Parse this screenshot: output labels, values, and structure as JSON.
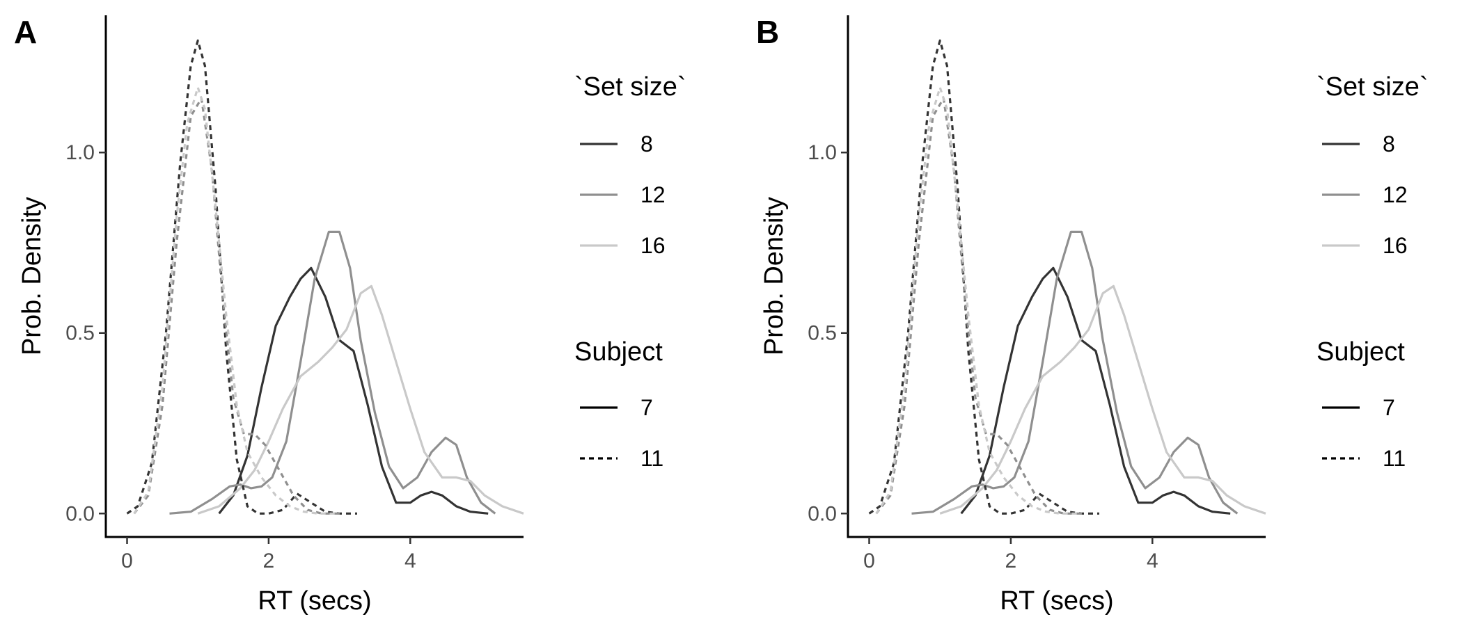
{
  "chart_data": [
    {
      "type": "line",
      "panel_label": "A",
      "xlabel": "RT (secs)",
      "ylabel": "Prob. Density",
      "xlim": [
        -0.3,
        5.6
      ],
      "ylim": [
        -0.065,
        1.38
      ],
      "xticks": [
        0,
        2,
        4
      ],
      "xtick_labels": [
        "0",
        "2",
        "4"
      ],
      "yticks": [
        0,
        0.5,
        1
      ],
      "ytick_labels": [
        "0.0",
        "0.5",
        "1.0"
      ],
      "grid": false,
      "legend_placement": "right",
      "legend_color": {
        "title": "`Set size`",
        "entries": [
          {
            "label": "8",
            "color": "#333333"
          },
          {
            "label": "12",
            "color": "#8f8f8f"
          },
          {
            "label": "16",
            "color": "#c9c9c9"
          }
        ]
      },
      "legend_linetype": {
        "title": "Subject",
        "entries": [
          {
            "label": "7",
            "dash": "solid"
          },
          {
            "label": "11",
            "dash": "dashed"
          }
        ]
      },
      "series": [
        {
          "set_size": "8",
          "subject": "7",
          "color": "#333333",
          "dash": "solid",
          "x": [
            1.3,
            1.5,
            1.7,
            1.9,
            2.1,
            2.3,
            2.45,
            2.6,
            2.8,
            3.0,
            3.2,
            3.4,
            3.6,
            3.8,
            4.0,
            4.15,
            4.3,
            4.45,
            4.65,
            4.85,
            5.1
          ],
          "y": [
            0.0,
            0.05,
            0.16,
            0.35,
            0.52,
            0.6,
            0.65,
            0.68,
            0.6,
            0.48,
            0.45,
            0.3,
            0.13,
            0.03,
            0.03,
            0.05,
            0.06,
            0.05,
            0.02,
            0.005,
            0.0
          ]
        },
        {
          "set_size": "12",
          "subject": "7",
          "color": "#8f8f8f",
          "dash": "solid",
          "x": [
            0.6,
            0.9,
            1.2,
            1.45,
            1.6,
            1.75,
            1.9,
            2.05,
            2.25,
            2.45,
            2.65,
            2.85,
            3.0,
            3.15,
            3.3,
            3.5,
            3.7,
            3.9,
            4.1,
            4.3,
            4.5,
            4.65,
            4.8,
            5.0,
            5.2
          ],
          "y": [
            0.0,
            0.005,
            0.04,
            0.075,
            0.08,
            0.07,
            0.075,
            0.1,
            0.2,
            0.42,
            0.65,
            0.78,
            0.78,
            0.68,
            0.48,
            0.28,
            0.13,
            0.07,
            0.1,
            0.17,
            0.21,
            0.19,
            0.1,
            0.03,
            0.0
          ]
        },
        {
          "set_size": "16",
          "subject": "7",
          "color": "#c9c9c9",
          "dash": "solid",
          "x": [
            1.0,
            1.3,
            1.6,
            1.8,
            2.0,
            2.2,
            2.45,
            2.7,
            2.9,
            3.1,
            3.3,
            3.45,
            3.6,
            3.8,
            4.0,
            4.2,
            4.45,
            4.65,
            4.85,
            5.05,
            5.3,
            5.6
          ],
          "y": [
            0.0,
            0.02,
            0.07,
            0.12,
            0.2,
            0.29,
            0.38,
            0.42,
            0.46,
            0.51,
            0.61,
            0.63,
            0.55,
            0.42,
            0.29,
            0.17,
            0.1,
            0.1,
            0.09,
            0.05,
            0.02,
            0.0
          ]
        },
        {
          "set_size": "8",
          "subject": "11",
          "color": "#333333",
          "dash": "dashed",
          "x": [
            0.0,
            0.15,
            0.35,
            0.55,
            0.75,
            0.9,
            1.0,
            1.1,
            1.25,
            1.4,
            1.55,
            1.7,
            1.85,
            2.0,
            2.2,
            2.4,
            2.6,
            2.8,
            3.0,
            3.25
          ],
          "y": [
            0.0,
            0.02,
            0.14,
            0.5,
            0.97,
            1.24,
            1.31,
            1.24,
            0.9,
            0.45,
            0.15,
            0.02,
            0.0,
            0.0,
            0.01,
            0.055,
            0.03,
            0.005,
            0.0,
            0.0
          ]
        },
        {
          "set_size": "12",
          "subject": "11",
          "color": "#8f8f8f",
          "dash": "dashed",
          "x": [
            0.1,
            0.3,
            0.5,
            0.7,
            0.9,
            1.05,
            1.2,
            1.35,
            1.5,
            1.65,
            1.8,
            1.95,
            2.15,
            2.35,
            2.55,
            2.75,
            3.0
          ],
          "y": [
            0.0,
            0.05,
            0.3,
            0.75,
            1.1,
            1.15,
            0.95,
            0.6,
            0.32,
            0.22,
            0.22,
            0.19,
            0.12,
            0.05,
            0.01,
            0.0,
            0.0
          ]
        },
        {
          "set_size": "16",
          "subject": "11",
          "color": "#c9c9c9",
          "dash": "dashed",
          "x": [
            0.1,
            0.3,
            0.5,
            0.7,
            0.85,
            1.0,
            1.1,
            1.25,
            1.4,
            1.55,
            1.7,
            1.9,
            2.1,
            2.3,
            2.5,
            2.7,
            3.0
          ],
          "y": [
            0.0,
            0.06,
            0.35,
            0.82,
            1.08,
            1.18,
            1.12,
            0.85,
            0.55,
            0.3,
            0.17,
            0.1,
            0.05,
            0.02,
            0.005,
            0.0,
            0.0
          ]
        }
      ]
    },
    {
      "type": "line",
      "panel_label": "B",
      "xlabel": "RT (secs)",
      "ylabel": "Prob. Density",
      "xlim": [
        -0.3,
        5.6
      ],
      "ylim": [
        -0.065,
        1.38
      ],
      "xticks": [
        0,
        2,
        4
      ],
      "xtick_labels": [
        "0",
        "2",
        "4"
      ],
      "yticks": [
        0,
        0.5,
        1
      ],
      "ytick_labels": [
        "0.0",
        "0.5",
        "1.0"
      ],
      "grid": false,
      "legend_placement": "right",
      "legend_color": {
        "title": "`Set size`",
        "entries": [
          {
            "label": "8",
            "color": "#333333"
          },
          {
            "label": "12",
            "color": "#8f8f8f"
          },
          {
            "label": "16",
            "color": "#c9c9c9"
          }
        ]
      },
      "legend_linetype": {
        "title": "Subject",
        "entries": [
          {
            "label": "7",
            "dash": "solid"
          },
          {
            "label": "11",
            "dash": "dashed"
          }
        ]
      },
      "series": [
        {
          "set_size": "8",
          "subject": "7",
          "color": "#333333",
          "dash": "solid",
          "x": [
            1.3,
            1.5,
            1.7,
            1.9,
            2.1,
            2.3,
            2.45,
            2.6,
            2.8,
            3.0,
            3.2,
            3.4,
            3.6,
            3.8,
            4.0,
            4.15,
            4.3,
            4.45,
            4.65,
            4.85,
            5.1
          ],
          "y": [
            0.0,
            0.05,
            0.16,
            0.35,
            0.52,
            0.6,
            0.65,
            0.68,
            0.6,
            0.48,
            0.45,
            0.3,
            0.13,
            0.03,
            0.03,
            0.05,
            0.06,
            0.05,
            0.02,
            0.005,
            0.0
          ]
        },
        {
          "set_size": "12",
          "subject": "7",
          "color": "#8f8f8f",
          "dash": "solid",
          "x": [
            0.6,
            0.9,
            1.2,
            1.45,
            1.6,
            1.75,
            1.9,
            2.05,
            2.25,
            2.45,
            2.65,
            2.85,
            3.0,
            3.15,
            3.3,
            3.5,
            3.7,
            3.9,
            4.1,
            4.3,
            4.5,
            4.65,
            4.8,
            5.0,
            5.2
          ],
          "y": [
            0.0,
            0.005,
            0.04,
            0.075,
            0.08,
            0.07,
            0.075,
            0.1,
            0.2,
            0.42,
            0.65,
            0.78,
            0.78,
            0.68,
            0.48,
            0.28,
            0.13,
            0.07,
            0.1,
            0.17,
            0.21,
            0.19,
            0.1,
            0.03,
            0.0
          ]
        },
        {
          "set_size": "16",
          "subject": "7",
          "color": "#c9c9c9",
          "dash": "solid",
          "x": [
            1.0,
            1.3,
            1.6,
            1.8,
            2.0,
            2.2,
            2.45,
            2.7,
            2.9,
            3.1,
            3.3,
            3.45,
            3.6,
            3.8,
            4.0,
            4.2,
            4.45,
            4.65,
            4.85,
            5.05,
            5.3,
            5.6
          ],
          "y": [
            0.0,
            0.02,
            0.07,
            0.12,
            0.2,
            0.29,
            0.38,
            0.42,
            0.46,
            0.51,
            0.61,
            0.63,
            0.55,
            0.42,
            0.29,
            0.17,
            0.1,
            0.1,
            0.09,
            0.05,
            0.02,
            0.0
          ]
        },
        {
          "set_size": "8",
          "subject": "11",
          "color": "#333333",
          "dash": "dashed",
          "x": [
            0.0,
            0.15,
            0.35,
            0.55,
            0.75,
            0.9,
            1.0,
            1.1,
            1.25,
            1.4,
            1.55,
            1.7,
            1.85,
            2.0,
            2.2,
            2.4,
            2.6,
            2.8,
            3.0,
            3.25
          ],
          "y": [
            0.0,
            0.02,
            0.14,
            0.5,
            0.97,
            1.24,
            1.31,
            1.24,
            0.9,
            0.45,
            0.15,
            0.02,
            0.0,
            0.0,
            0.01,
            0.055,
            0.03,
            0.005,
            0.0,
            0.0
          ]
        },
        {
          "set_size": "12",
          "subject": "11",
          "color": "#8f8f8f",
          "dash": "dashed",
          "x": [
            0.1,
            0.3,
            0.5,
            0.7,
            0.9,
            1.05,
            1.2,
            1.35,
            1.5,
            1.65,
            1.8,
            1.95,
            2.15,
            2.35,
            2.55,
            2.75,
            3.0
          ],
          "y": [
            0.0,
            0.05,
            0.3,
            0.75,
            1.1,
            1.15,
            0.95,
            0.6,
            0.32,
            0.22,
            0.22,
            0.19,
            0.12,
            0.05,
            0.01,
            0.0,
            0.0
          ]
        },
        {
          "set_size": "16",
          "subject": "11",
          "color": "#c9c9c9",
          "dash": "dashed",
          "x": [
            0.1,
            0.3,
            0.5,
            0.7,
            0.85,
            1.0,
            1.1,
            1.25,
            1.4,
            1.55,
            1.7,
            1.9,
            2.1,
            2.3,
            2.5,
            2.7,
            3.0
          ],
          "y": [
            0.0,
            0.06,
            0.35,
            0.82,
            1.08,
            1.18,
            1.12,
            0.85,
            0.55,
            0.3,
            0.17,
            0.1,
            0.05,
            0.02,
            0.005,
            0.0,
            0.0
          ]
        }
      ]
    }
  ]
}
